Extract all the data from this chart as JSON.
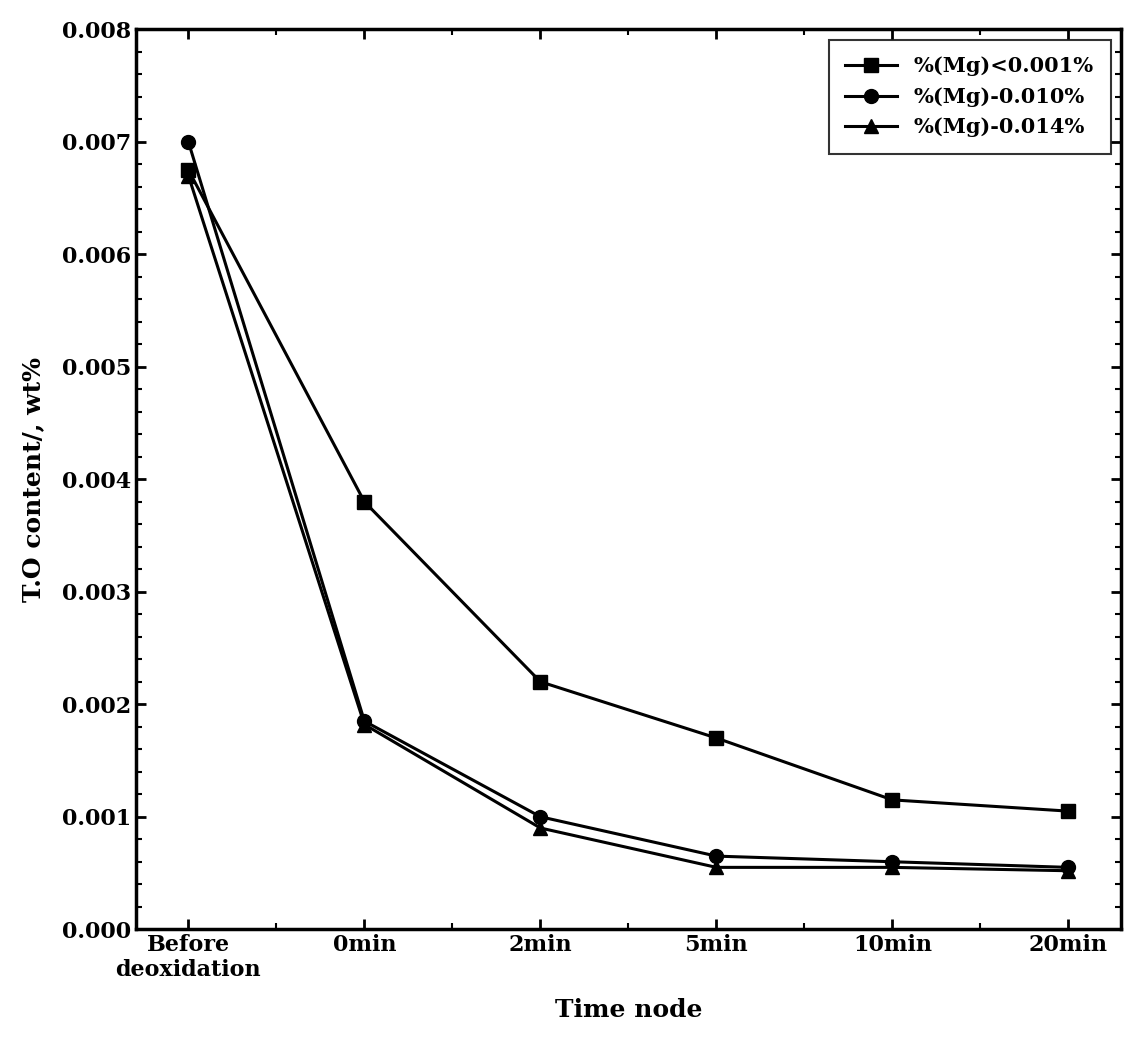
{
  "x_labels": [
    "Before\ndeoxidation",
    "0min",
    "2min",
    "5min",
    "10min",
    "20min"
  ],
  "x_positions": [
    0,
    1,
    2,
    3,
    4,
    5
  ],
  "series": [
    {
      "label": "%(Mg)<0.001%",
      "marker": "s",
      "values": [
        0.00675,
        0.0038,
        0.0022,
        0.0017,
        0.00115,
        0.00105
      ]
    },
    {
      "label": "%(Mg)-0.010%",
      "marker": "o",
      "values": [
        0.007,
        0.00185,
        0.001,
        0.00065,
        0.0006,
        0.00055
      ]
    },
    {
      "label": "%(Mg)-0.014%",
      "marker": "^",
      "values": [
        0.0067,
        0.00182,
        0.0009,
        0.00055,
        0.00055,
        0.00052
      ]
    }
  ],
  "ylabel": "T.O content/, wt%",
  "xlabel": "Time node",
  "ylim": [
    0.0,
    0.008
  ],
  "yticks": [
    0.0,
    0.001,
    0.002,
    0.003,
    0.004,
    0.005,
    0.006,
    0.007,
    0.008
  ],
  "line_color": "#000000",
  "line_width": 2.2,
  "marker_size": 10,
  "background_color": "#ffffff",
  "legend_loc": "upper right",
  "label_fontsize": 18,
  "tick_fontsize": 16,
  "legend_fontsize": 15
}
